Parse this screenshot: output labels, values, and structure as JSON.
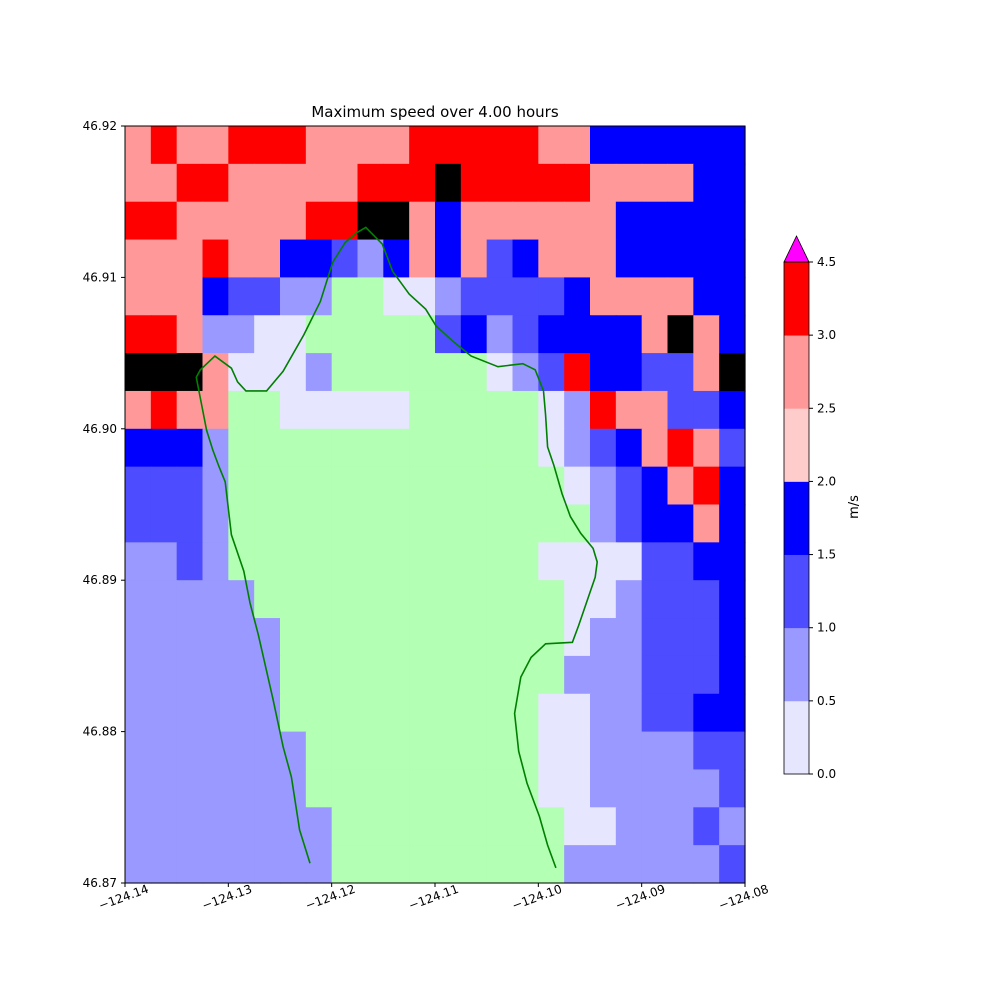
{
  "chart_data": {
    "type": "heatmap",
    "title": "Maximum speed over 4.00 hours",
    "xlabel": "",
    "ylabel": "",
    "xlim": [
      -124.14,
      -124.08
    ],
    "ylim": [
      46.87,
      46.92
    ],
    "xticks": [
      -124.14,
      -124.13,
      -124.12,
      -124.11,
      -124.1,
      -124.09,
      -124.08
    ],
    "xtick_labels": [
      "−124.14",
      "−124.13",
      "−124.12",
      "−124.11",
      "−124.10",
      "−124.09",
      "−124.08"
    ],
    "yticks": [
      46.87,
      46.88,
      46.89,
      46.9,
      46.91,
      46.92
    ],
    "ytick_labels": [
      "46.87",
      "46.88",
      "46.89",
      "46.90",
      "46.91",
      "46.92"
    ],
    "grid": false,
    "n_columns": 24,
    "n_rows": 20,
    "row_order": "top-to-bottom",
    "land_code": -1,
    "land_color": "#b3ffb3",
    "cells": [
      [
        5,
        6,
        5,
        5,
        6,
        6,
        6,
        5,
        5,
        5,
        5,
        6,
        6,
        6,
        6,
        6,
        5,
        5,
        3,
        3,
        3,
        3,
        3,
        3
      ],
      [
        5,
        5,
        6,
        6,
        5,
        5,
        5,
        5,
        5,
        6,
        6,
        6,
        7,
        6,
        6,
        6,
        6,
        6,
        5,
        5,
        5,
        5,
        3,
        3
      ],
      [
        6,
        6,
        5,
        5,
        5,
        5,
        5,
        6,
        6,
        7,
        7,
        5,
        3,
        5,
        5,
        5,
        5,
        5,
        5,
        3,
        3,
        3,
        3,
        3
      ],
      [
        5,
        5,
        5,
        6,
        5,
        5,
        3,
        3,
        2,
        1,
        3,
        5,
        3,
        5,
        2,
        3,
        5,
        5,
        5,
        3,
        3,
        3,
        3,
        3
      ],
      [
        5,
        5,
        5,
        3,
        2,
        2,
        1,
        1,
        -1,
        -1,
        0,
        0,
        1,
        2,
        2,
        2,
        2,
        3,
        5,
        5,
        5,
        5,
        3,
        3
      ],
      [
        6,
        6,
        5,
        1,
        1,
        0,
        0,
        -1,
        -1,
        -1,
        -1,
        -1,
        2,
        3,
        1,
        2,
        3,
        3,
        3,
        3,
        5,
        7,
        5,
        3
      ],
      [
        7,
        7,
        7,
        5,
        0,
        0,
        0,
        1,
        -1,
        -1,
        -1,
        -1,
        -1,
        -1,
        0,
        1,
        2,
        6,
        3,
        3,
        2,
        2,
        5,
        7
      ],
      [
        5,
        6,
        5,
        5,
        -1,
        -1,
        0,
        0,
        0,
        0,
        0,
        -1,
        -1,
        -1,
        -1,
        -1,
        0,
        1,
        6,
        5,
        5,
        2,
        2,
        3
      ],
      [
        3,
        3,
        3,
        1,
        -1,
        -1,
        -1,
        -1,
        -1,
        -1,
        -1,
        -1,
        -1,
        -1,
        -1,
        -1,
        0,
        1,
        2,
        3,
        5,
        6,
        5,
        2
      ],
      [
        2,
        2,
        2,
        1,
        -1,
        -1,
        -1,
        -1,
        -1,
        -1,
        -1,
        -1,
        -1,
        -1,
        -1,
        -1,
        -1,
        0,
        1,
        2,
        3,
        5,
        6,
        3
      ],
      [
        2,
        2,
        2,
        1,
        -1,
        -1,
        -1,
        -1,
        -1,
        -1,
        -1,
        -1,
        -1,
        -1,
        -1,
        -1,
        -1,
        -1,
        1,
        2,
        3,
        3,
        5,
        3
      ],
      [
        1,
        1,
        2,
        1,
        -1,
        -1,
        -1,
        -1,
        -1,
        -1,
        -1,
        -1,
        -1,
        -1,
        -1,
        -1,
        0,
        0,
        0,
        0,
        2,
        2,
        3,
        3
      ],
      [
        1,
        1,
        1,
        1,
        1,
        -1,
        -1,
        -1,
        -1,
        -1,
        -1,
        -1,
        -1,
        -1,
        -1,
        -1,
        -1,
        0,
        0,
        1,
        2,
        2,
        2,
        3
      ],
      [
        1,
        1,
        1,
        1,
        1,
        1,
        -1,
        -1,
        -1,
        -1,
        -1,
        -1,
        -1,
        -1,
        -1,
        -1,
        -1,
        0,
        1,
        1,
        2,
        2,
        2,
        3
      ],
      [
        1,
        1,
        1,
        1,
        1,
        1,
        -1,
        -1,
        -1,
        -1,
        -1,
        -1,
        -1,
        -1,
        -1,
        -1,
        -1,
        1,
        1,
        1,
        2,
        2,
        2,
        3
      ],
      [
        1,
        1,
        1,
        1,
        1,
        1,
        -1,
        -1,
        -1,
        -1,
        -1,
        -1,
        -1,
        -1,
        -1,
        -1,
        0,
        0,
        1,
        1,
        2,
        2,
        3,
        3
      ],
      [
        1,
        1,
        1,
        1,
        1,
        1,
        1,
        -1,
        -1,
        -1,
        -1,
        -1,
        -1,
        -1,
        -1,
        -1,
        0,
        0,
        1,
        1,
        1,
        1,
        2,
        2
      ],
      [
        1,
        1,
        1,
        1,
        1,
        1,
        1,
        -1,
        -1,
        -1,
        -1,
        -1,
        -1,
        -1,
        -1,
        -1,
        0,
        0,
        1,
        1,
        1,
        1,
        1,
        2
      ],
      [
        1,
        1,
        1,
        1,
        1,
        1,
        1,
        1,
        -1,
        -1,
        -1,
        -1,
        -1,
        -1,
        -1,
        -1,
        -1,
        0,
        0,
        1,
        1,
        1,
        2,
        1
      ],
      [
        1,
        1,
        1,
        1,
        1,
        1,
        1,
        1,
        -1,
        -1,
        -1,
        -1,
        -1,
        -1,
        -1,
        -1,
        -1,
        1,
        1,
        1,
        1,
        1,
        1,
        2
      ]
    ],
    "colorbar": {
      "label": "m/s",
      "levels": [
        0.0,
        0.5,
        1.0,
        1.5,
        2.0,
        2.5,
        3.0,
        4.5
      ],
      "tick_labels": [
        "0.0",
        "0.5",
        "1.0",
        "1.5",
        "2.0",
        "2.5",
        "3.0",
        "4.5"
      ],
      "colors": [
        "#e6e6ff",
        "#9999ff",
        "#4d4dff",
        "#0000ff",
        "#ffcccc",
        "#ff9999",
        "#ff0000"
      ],
      "extend_color": "#ff00ff"
    },
    "shoreline": {
      "name": "shoreline",
      "color": "#008000",
      "points": [
        [
          -124.1221,
          46.8713
        ],
        [
          -124.1231,
          46.8735
        ],
        [
          -124.1239,
          46.877
        ],
        [
          -124.1247,
          46.879
        ],
        [
          -124.1257,
          46.8822
        ],
        [
          -124.1271,
          46.8864
        ],
        [
          -124.1279,
          46.8885
        ],
        [
          -124.1285,
          46.8906
        ],
        [
          -124.1297,
          46.893
        ],
        [
          -124.1303,
          46.8965
        ],
        [
          -124.1309,
          46.8975
        ],
        [
          -124.1315,
          46.8986
        ],
        [
          -124.1321,
          46.8999
        ],
        [
          -124.1327,
          46.902
        ],
        [
          -124.1331,
          46.9034
        ],
        [
          -124.1327,
          46.9039
        ],
        [
          -124.1313,
          46.9048
        ],
        [
          -124.1297,
          46.904
        ],
        [
          -124.1291,
          46.9031
        ],
        [
          -124.1283,
          46.9025
        ],
        [
          -124.1263,
          46.9025
        ],
        [
          -124.1247,
          46.9038
        ],
        [
          -124.1227,
          46.9062
        ],
        [
          -124.1211,
          46.9084
        ],
        [
          -124.1199,
          46.911
        ],
        [
          -124.1187,
          46.9123
        ],
        [
          -124.1177,
          46.9129
        ],
        [
          -124.1167,
          46.9133
        ],
        [
          -124.1151,
          46.9122
        ],
        [
          -124.1141,
          46.9104
        ],
        [
          -124.1125,
          46.9089
        ],
        [
          -124.1109,
          46.9079
        ],
        [
          -124.1099,
          46.9068
        ],
        [
          -124.1083,
          46.9058
        ],
        [
          -124.1065,
          46.9048
        ],
        [
          -124.1039,
          46.9041
        ],
        [
          -124.1015,
          46.9043
        ],
        [
          -124.1003,
          46.9039
        ],
        [
          -124.0995,
          46.9025
        ],
        [
          -124.0993,
          46.9009
        ],
        [
          -124.0991,
          46.8988
        ],
        [
          -124.0985,
          46.8976
        ],
        [
          -124.0977,
          46.8957
        ],
        [
          -124.0969,
          46.8942
        ],
        [
          -124.0959,
          46.8931
        ],
        [
          -124.0947,
          46.8921
        ],
        [
          -124.0943,
          46.8912
        ],
        [
          -124.0945,
          46.8902
        ],
        [
          -124.0951,
          46.889
        ],
        [
          -124.0961,
          46.887
        ],
        [
          -124.0967,
          46.8859
        ],
        [
          -124.0993,
          46.8858
        ],
        [
          -124.1007,
          46.8849
        ],
        [
          -124.1017,
          46.8836
        ],
        [
          -124.1023,
          46.8812
        ],
        [
          -124.1019,
          46.8787
        ],
        [
          -124.1011,
          46.8766
        ],
        [
          -124.0999,
          46.8744
        ],
        [
          -124.0991,
          46.8725
        ],
        [
          -124.0983,
          46.871
        ]
      ]
    }
  }
}
